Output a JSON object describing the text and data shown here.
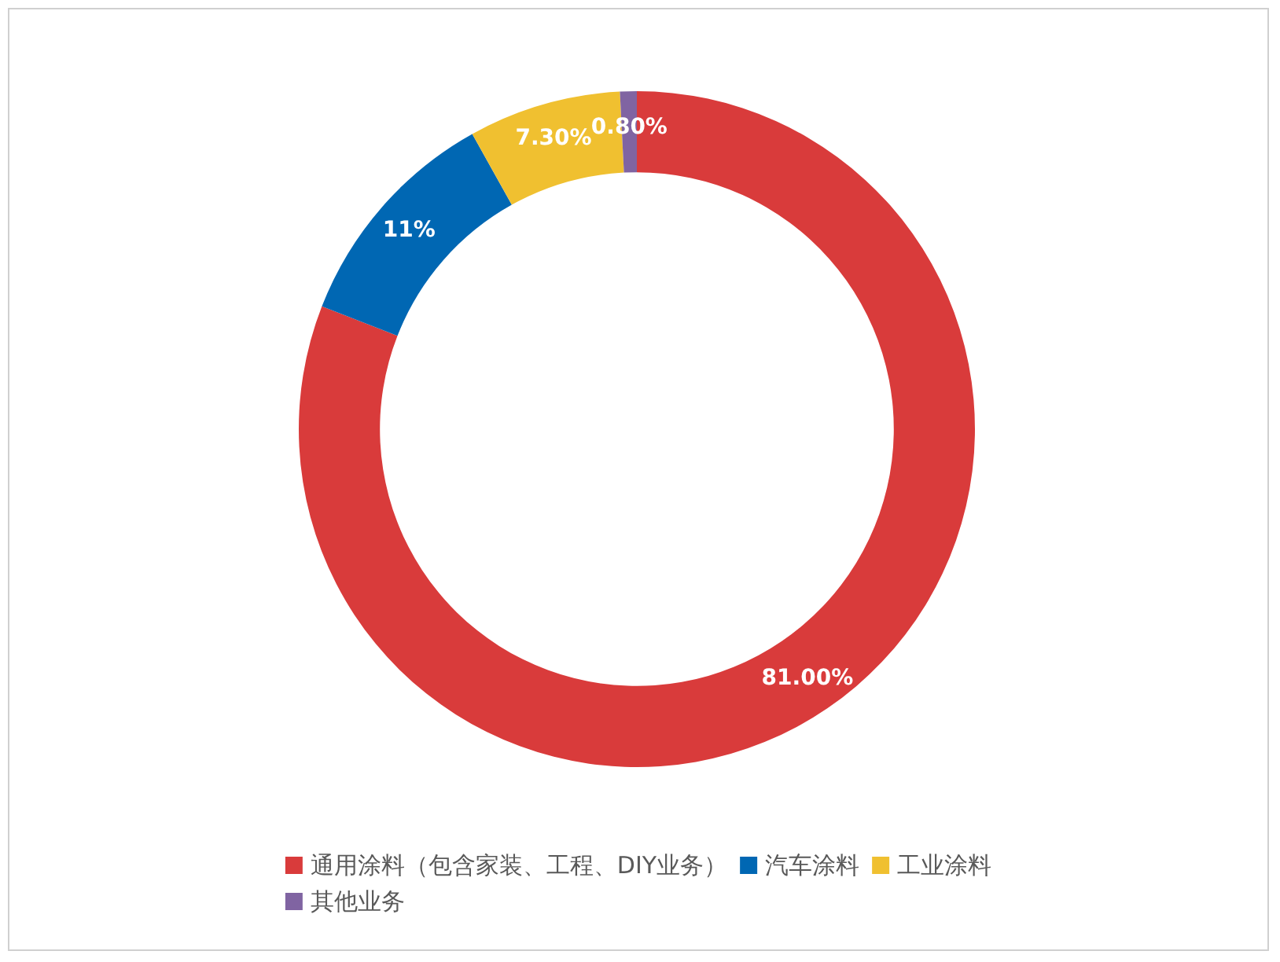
{
  "chart_data": {
    "type": "donut",
    "categories": [
      "通用涂料（包含家装、工程、DIY业务）",
      "汽车涂料",
      "工业涂料",
      "其他业务"
    ],
    "values": [
      81.0,
      11,
      7.3,
      0.8
    ],
    "value_labels": [
      "81.00%",
      "11%",
      "7.30%",
      "0.80%"
    ],
    "colors": [
      "#d93b3b",
      "#0067b3",
      "#f0c030",
      "#8064a2"
    ],
    "legend": "bottom"
  }
}
